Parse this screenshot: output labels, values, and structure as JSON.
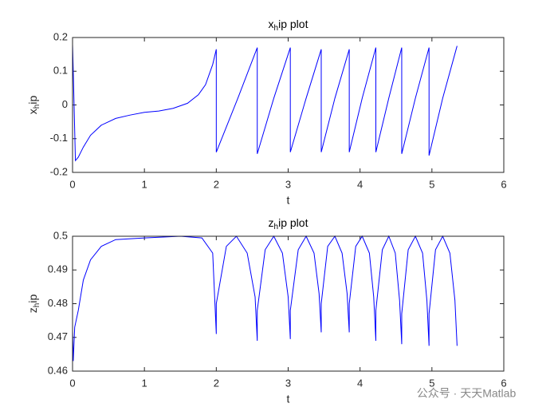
{
  "chart_data": [
    {
      "type": "line",
      "title": "x_hip plot",
      "xlabel": "t",
      "ylabel": "x_hip",
      "xlim": [
        0,
        6
      ],
      "xticks": [
        0,
        1,
        2,
        3,
        4,
        5,
        6
      ],
      "ylim": [
        -0.2,
        0.2
      ],
      "yticks": [
        -0.2,
        -0.1,
        0,
        0.1,
        0.2
      ],
      "grid": false,
      "x": [
        0,
        0.01,
        0.04,
        0.08,
        0.15,
        0.25,
        0.4,
        0.6,
        0.8,
        1.0,
        1.2,
        1.4,
        1.6,
        1.75,
        1.85,
        1.95,
        2.0,
        2.0,
        2.3,
        2.57,
        2.57,
        2.8,
        3.03,
        3.03,
        3.25,
        3.46,
        3.46,
        3.65,
        3.85,
        3.85,
        4.03,
        4.22,
        4.22,
        4.4,
        4.58,
        4.58,
        4.77,
        4.96,
        4.96,
        5.15,
        5.35
      ],
      "series": [
        {
          "color": "#0000ff",
          "values": [
            0.18,
            0.1,
            -0.165,
            -0.155,
            -0.125,
            -0.09,
            -0.06,
            -0.04,
            -0.03,
            -0.022,
            -0.018,
            -0.01,
            0.005,
            0.03,
            0.06,
            0.12,
            0.165,
            -0.14,
            0.02,
            0.17,
            -0.145,
            0.02,
            0.17,
            -0.14,
            0.02,
            0.165,
            -0.14,
            0.02,
            0.165,
            -0.14,
            0.02,
            0.17,
            -0.14,
            0.02,
            0.17,
            -0.145,
            0.02,
            0.17,
            -0.15,
            0.02,
            0.175
          ]
        }
      ]
    },
    {
      "type": "line",
      "title": "z_hip plot",
      "xlabel": "t",
      "ylabel": "z_hip",
      "xlim": [
        0,
        6
      ],
      "xticks": [
        0,
        1,
        2,
        3,
        4,
        5,
        6
      ],
      "ylim": [
        0.46,
        0.5
      ],
      "yticks": [
        0.46,
        0.47,
        0.48,
        0.49,
        0.5
      ],
      "grid": false,
      "x": [
        0,
        0.01,
        0.03,
        0.08,
        0.15,
        0.25,
        0.4,
        0.6,
        1.0,
        1.5,
        1.8,
        1.95,
        2.0,
        2.0,
        2.14,
        2.28,
        2.43,
        2.54,
        2.57,
        2.57,
        2.68,
        2.8,
        2.92,
        3.0,
        3.03,
        3.03,
        3.14,
        3.25,
        3.36,
        3.43,
        3.46,
        3.46,
        3.55,
        3.65,
        3.75,
        3.82,
        3.85,
        3.85,
        3.94,
        4.03,
        4.13,
        4.19,
        4.22,
        4.22,
        4.31,
        4.4,
        4.49,
        4.55,
        4.58,
        4.58,
        4.67,
        4.77,
        4.87,
        4.93,
        4.96,
        4.96,
        5.05,
        5.15,
        5.25,
        5.32,
        5.35
      ],
      "series": [
        {
          "color": "#0000ff",
          "values": [
            0.472,
            0.463,
            0.473,
            0.478,
            0.487,
            0.493,
            0.497,
            0.499,
            0.4995,
            0.5,
            0.4995,
            0.495,
            0.471,
            0.48,
            0.497,
            0.5,
            0.495,
            0.482,
            0.469,
            0.478,
            0.496,
            0.5,
            0.495,
            0.482,
            0.4695,
            0.478,
            0.496,
            0.5,
            0.495,
            0.483,
            0.4715,
            0.48,
            0.497,
            0.5,
            0.495,
            0.483,
            0.4715,
            0.48,
            0.497,
            0.5,
            0.495,
            0.482,
            0.469,
            0.478,
            0.496,
            0.5,
            0.495,
            0.481,
            0.468,
            0.477,
            0.496,
            0.5,
            0.495,
            0.481,
            0.4675,
            0.477,
            0.496,
            0.5,
            0.495,
            0.481,
            0.4675
          ]
        }
      ]
    }
  ],
  "watermark": "公众号 · 天天Matlab"
}
